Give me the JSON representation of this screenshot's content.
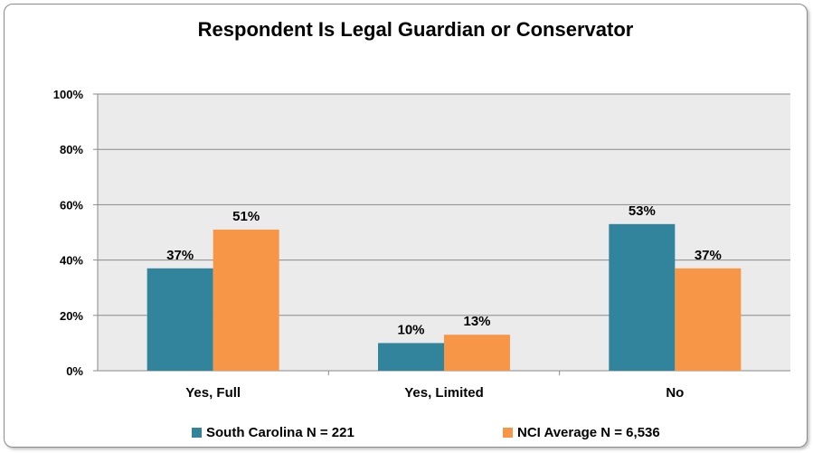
{
  "chart_data": {
    "type": "bar",
    "title": "Respondent Is Legal Guardian or Conservator",
    "categories": [
      "Yes, Full",
      "Yes, Limited",
      "No"
    ],
    "series": [
      {
        "name": "South Carolina N = 221",
        "values": [
          37,
          10,
          53
        ],
        "labels": [
          "37%",
          "10%",
          "53%"
        ],
        "color": "#31849b"
      },
      {
        "name": "NCI Average N = 6,536",
        "values": [
          51,
          13,
          37
        ],
        "labels": [
          "51%",
          "13%",
          "37%"
        ],
        "color": "#f79646"
      }
    ],
    "ylim": [
      0,
      100
    ],
    "yticks": [
      0,
      20,
      40,
      60,
      80,
      100
    ],
    "ytick_labels": [
      "0%",
      "20%",
      "40%",
      "60%",
      "80%",
      "100%"
    ],
    "xlabel": "",
    "ylabel": "",
    "grid": true,
    "legend_position": "bottom",
    "plot_background": "#ebebeb"
  }
}
